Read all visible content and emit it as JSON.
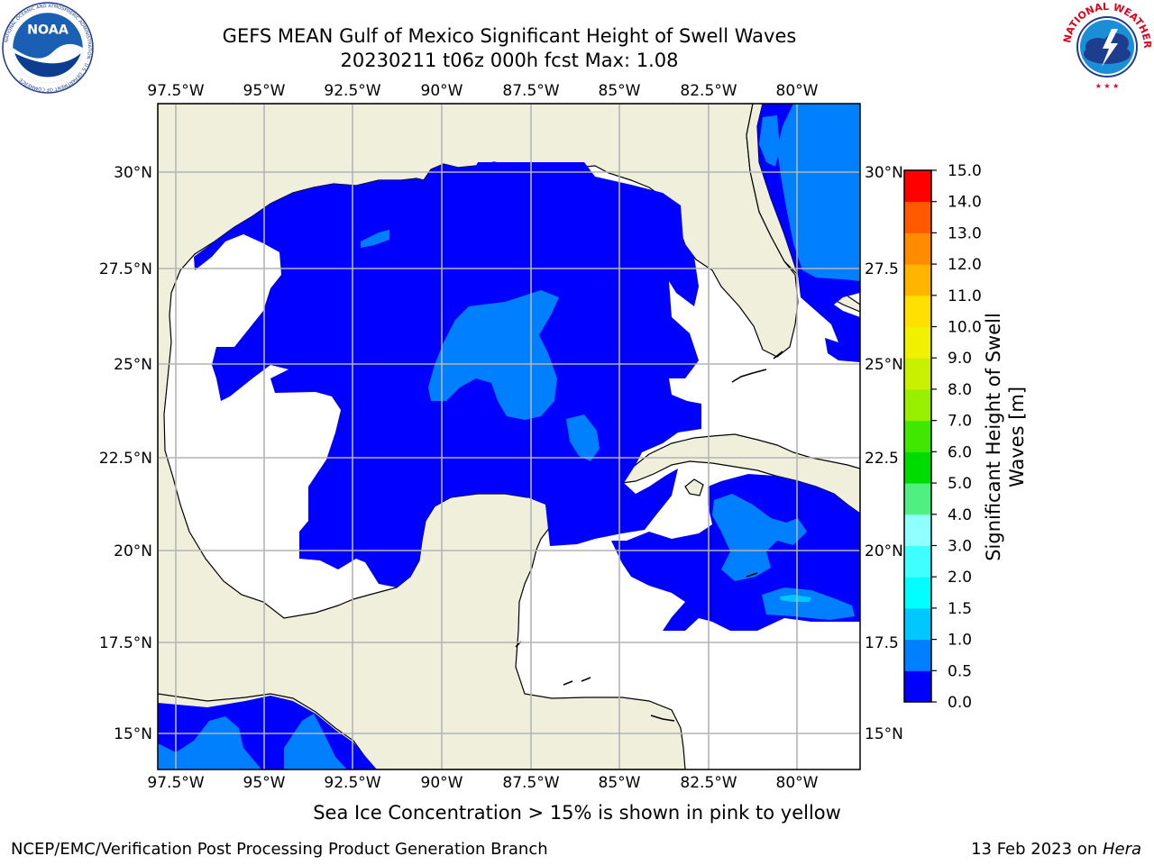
{
  "header": {
    "title_line1": "GEFS MEAN Gulf of Mexico Significant Height of Swell Waves",
    "title_line2": "20230211 t06z 000h fcst   Max: 1.08"
  },
  "logos": {
    "left": "noaa-logo",
    "right": "nws-logo",
    "noaa_text": "NOAA",
    "noaa_ring": "NATIONAL OCEANIC AND ATMOSPHERIC ADMINISTRATION · U.S. DEPARTMENT OF COMMERCE",
    "nws_ring": "NATIONAL WEATHER SERVICE"
  },
  "map": {
    "lon_labels": [
      "97.5°W",
      "95°W",
      "92.5°W",
      "90°W",
      "87.5°W",
      "85°W",
      "82.5°W",
      "80°W"
    ],
    "lat_labels_left": [
      "30°N",
      "27.5°N",
      "25°N",
      "22.5°N",
      "20°N",
      "17.5°N",
      "15°N"
    ],
    "lat_labels_right": [
      "30°N",
      "27.5",
      "25°N",
      "22.5",
      "20°N",
      "17.5",
      "15°N"
    ],
    "land_color": "#efefdc",
    "grid_color": "#b4b4b4"
  },
  "colorbar": {
    "label_line1": "Significant Height of Swell",
    "label_line2": "Waves [m]",
    "ticks": [
      "0.0",
      "0.5",
      "1.0",
      "1.5",
      "2.0",
      "3.0",
      "4.0",
      "5.0",
      "6.0",
      "7.0",
      "8.0",
      "9.0",
      "10.0",
      "11.0",
      "12.0",
      "13.0",
      "14.0",
      "15.0"
    ],
    "colors": [
      "#0000ff",
      "#0080ff",
      "#00c8ff",
      "#00ffff",
      "#40ffff",
      "#90ffff",
      "#50f080",
      "#00dc00",
      "#40e800",
      "#98f000",
      "#c8f000",
      "#f0f000",
      "#ffe000",
      "#ffb400",
      "#ff8c00",
      "#ff5a00",
      "#ff2000",
      "#ff0000"
    ]
  },
  "note": "Sea Ice Concentration > 15% is shown in pink to yellow",
  "footer": {
    "left": "NCEP/EMC/Verification Post Processing Product Generation Branch",
    "right_date": "13 Feb 2023 on ",
    "right_host": "Hera"
  }
}
